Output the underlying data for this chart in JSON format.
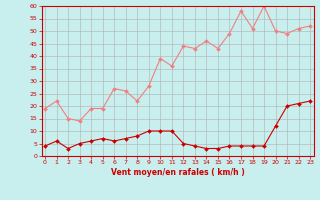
{
  "title": "",
  "xlabel": "Vent moyen/en rafales ( km/h )",
  "background_color": "#c8eeee",
  "grid_color": "#b0b0b0",
  "x_values": [
    0,
    1,
    2,
    3,
    4,
    5,
    6,
    7,
    8,
    9,
    10,
    11,
    12,
    13,
    14,
    15,
    16,
    17,
    18,
    19,
    20,
    21,
    22,
    23
  ],
  "avg_wind": [
    4,
    6,
    3,
    5,
    6,
    7,
    6,
    7,
    8,
    10,
    10,
    10,
    5,
    4,
    3,
    3,
    4,
    4,
    4,
    4,
    12,
    20,
    21,
    22
  ],
  "gust_wind": [
    19,
    22,
    15,
    14,
    19,
    19,
    27,
    26,
    22,
    28,
    39,
    36,
    44,
    43,
    46,
    43,
    49,
    58,
    51,
    60,
    50,
    49,
    51,
    52
  ],
  "avg_color": "#cc0000",
  "gust_color": "#f08080",
  "ylim": [
    0,
    60
  ],
  "yticks": [
    0,
    5,
    10,
    15,
    20,
    25,
    30,
    35,
    40,
    45,
    50,
    55,
    60
  ],
  "xticks": [
    0,
    1,
    2,
    3,
    4,
    5,
    6,
    7,
    8,
    9,
    10,
    11,
    12,
    13,
    14,
    15,
    16,
    17,
    18,
    19,
    20,
    21,
    22,
    23
  ],
  "marker_size": 2,
  "line_width": 0.8
}
